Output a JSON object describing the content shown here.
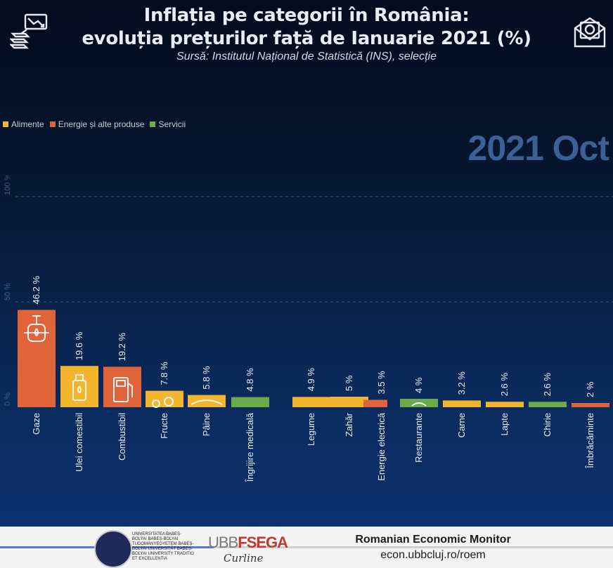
{
  "header": {
    "title_line1": "Inflația pe categorii în România:",
    "title_line2": "evoluția prețurilor față de Ianuarie 2021 (%)",
    "source": "Sursă:  Institutul Național de Statistică (INS), selecție"
  },
  "icons": {
    "top_left": "money-trend-icon",
    "top_right": "envelope-icon"
  },
  "legend": [
    {
      "label": "Alimente",
      "color": "#f2b52b"
    },
    {
      "label": "Energie și alte produse",
      "color": "#e0633a"
    },
    {
      "label": "Servicii",
      "color": "#6bab4a"
    }
  ],
  "period_label": "2021 Oct",
  "chart_data": {
    "type": "bar",
    "ylim": [
      0,
      100
    ],
    "yticks": [
      {
        "value": 0,
        "label": "0 %"
      },
      {
        "value": 50,
        "label": "50 %"
      },
      {
        "value": 100,
        "label": "100 %"
      }
    ],
    "grid": true,
    "bars": [
      {
        "category": "Gaze",
        "value": 46.2,
        "label": "46.2 %",
        "group": "Energie și alte produse",
        "icon": "gas-valve-icon"
      },
      {
        "category": "Ulei comestibil",
        "value": 19.6,
        "label": "19.6 %",
        "group": "Alimente",
        "icon": "oil-bottle-icon"
      },
      {
        "category": "Combustibil",
        "value": 19.2,
        "label": "19.2 %",
        "group": "Energie și alte produse",
        "icon": "fuel-pump-icon"
      },
      {
        "category": "Fructe",
        "value": 7.8,
        "label": "7.8 %",
        "group": "Alimente",
        "icon": "fruit-icon"
      },
      {
        "category": "Pâine",
        "value": 5.8,
        "label": "5.8 %",
        "group": "Alimente",
        "icon": "bread-icon"
      },
      {
        "category": "Îngrijire medicală",
        "value": 4.8,
        "label": "4.8 %",
        "group": "Servicii",
        "icon": "medical-icon"
      },
      {
        "category": "Legume",
        "value": 4.9,
        "label": "4.9 %",
        "group": "Alimente",
        "icon": "vegetable-icon"
      },
      {
        "category": "Zahăr",
        "value": 5,
        "label": "5 %",
        "group": "Alimente",
        "icon": ""
      },
      {
        "category": "Energie electrică",
        "value": 3.5,
        "label": "3.5 %",
        "group": "Energie și alte produse",
        "icon": ""
      },
      {
        "category": "Restaurante",
        "value": 4,
        "label": "4 %",
        "group": "Servicii",
        "icon": "plate-icon"
      },
      {
        "category": "Carne",
        "value": 3.2,
        "label": "3.2 %",
        "group": "Alimente",
        "icon": ""
      },
      {
        "category": "Lapte",
        "value": 2.6,
        "label": "2.6 %",
        "group": "Alimente",
        "icon": ""
      },
      {
        "category": "Chirie",
        "value": 2.6,
        "label": "2.6 %",
        "group": "Servicii",
        "icon": ""
      },
      {
        "category": "Îmbrăcăminte",
        "value": 2,
        "label": "2 %",
        "group": "Energie și alte produse",
        "icon": ""
      }
    ]
  },
  "footer": {
    "university_text": "UNIVERSITATEA BABEȘ-BOLYAI BABEȘ-BOLYAI TUDOMÁNYEGYETEM BABEȘ-BOLYAI UNIVERSITÄT BABEȘ-BOLYAI UNIVERSITY TRADITIO ET EXCELLENTIA",
    "faculty_logo": "UBB",
    "faculty_logo_accent": "FSEGA",
    "signature": "Curline",
    "monitor_title": "Romanian Economic Monitor",
    "monitor_url": "econ.ubbcluj.ro/roem"
  }
}
